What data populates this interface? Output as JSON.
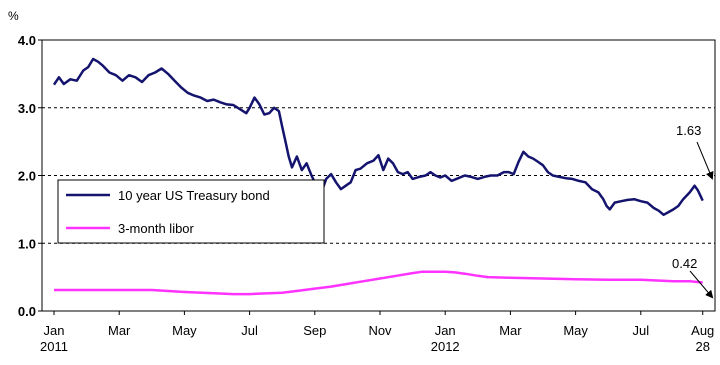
{
  "chart_data": {
    "type": "line",
    "unit_label": "%",
    "ylim": [
      0.0,
      4.0
    ],
    "y_ticks": [
      "0.0",
      "1.0",
      "2.0",
      "3.0",
      "4.0"
    ],
    "y_tick_values": [
      0.0,
      1.0,
      2.0,
      3.0,
      4.0
    ],
    "grid": "horizontal-dashed",
    "x_ticks": [
      {
        "label": "Jan",
        "sub": "2011",
        "month": 0
      },
      {
        "label": "Mar",
        "sub": "",
        "month": 2
      },
      {
        "label": "May",
        "sub": "",
        "month": 4
      },
      {
        "label": "Jul",
        "sub": "",
        "month": 6
      },
      {
        "label": "Sep",
        "sub": "",
        "month": 8
      },
      {
        "label": "Nov",
        "sub": "",
        "month": 10
      },
      {
        "label": "Jan",
        "sub": "2012",
        "month": 12
      },
      {
        "label": "Mar",
        "sub": "",
        "month": 14
      },
      {
        "label": "May",
        "sub": "",
        "month": 16
      },
      {
        "label": "Jul",
        "sub": "",
        "month": 18
      },
      {
        "label": "Aug",
        "sub": "28",
        "month": 19.9
      }
    ],
    "legend_position": "left-middle",
    "series": [
      {
        "name": "10 year US Treasury bond",
        "color": "#14146e",
        "points": [
          [
            0.0,
            3.34
          ],
          [
            0.15,
            3.45
          ],
          [
            0.3,
            3.35
          ],
          [
            0.5,
            3.42
          ],
          [
            0.7,
            3.4
          ],
          [
            0.9,
            3.55
          ],
          [
            1.05,
            3.6
          ],
          [
            1.2,
            3.72
          ],
          [
            1.35,
            3.68
          ],
          [
            1.5,
            3.62
          ],
          [
            1.7,
            3.52
          ],
          [
            1.9,
            3.48
          ],
          [
            2.1,
            3.4
          ],
          [
            2.3,
            3.48
          ],
          [
            2.5,
            3.45
          ],
          [
            2.7,
            3.38
          ],
          [
            2.9,
            3.48
          ],
          [
            3.1,
            3.52
          ],
          [
            3.3,
            3.58
          ],
          [
            3.5,
            3.5
          ],
          [
            3.7,
            3.4
          ],
          [
            3.9,
            3.3
          ],
          [
            4.1,
            3.22
          ],
          [
            4.3,
            3.18
          ],
          [
            4.5,
            3.15
          ],
          [
            4.7,
            3.1
          ],
          [
            4.9,
            3.12
          ],
          [
            5.1,
            3.08
          ],
          [
            5.3,
            3.05
          ],
          [
            5.5,
            3.04
          ],
          [
            5.7,
            2.98
          ],
          [
            5.9,
            2.92
          ],
          [
            6.0,
            3.0
          ],
          [
            6.15,
            3.15
          ],
          [
            6.3,
            3.05
          ],
          [
            6.45,
            2.9
          ],
          [
            6.6,
            2.92
          ],
          [
            6.75,
            3.0
          ],
          [
            6.9,
            2.95
          ],
          [
            7.0,
            2.72
          ],
          [
            7.1,
            2.5
          ],
          [
            7.2,
            2.28
          ],
          [
            7.3,
            2.12
          ],
          [
            7.45,
            2.28
          ],
          [
            7.6,
            2.08
          ],
          [
            7.75,
            2.18
          ],
          [
            7.9,
            2.0
          ],
          [
            8.05,
            1.85
          ],
          [
            8.2,
            1.75
          ],
          [
            8.35,
            1.95
          ],
          [
            8.5,
            2.02
          ],
          [
            8.65,
            1.9
          ],
          [
            8.8,
            1.8
          ],
          [
            8.95,
            1.85
          ],
          [
            9.1,
            1.9
          ],
          [
            9.25,
            2.08
          ],
          [
            9.4,
            2.1
          ],
          [
            9.6,
            2.18
          ],
          [
            9.8,
            2.22
          ],
          [
            9.95,
            2.3
          ],
          [
            10.1,
            2.08
          ],
          [
            10.25,
            2.25
          ],
          [
            10.4,
            2.18
          ],
          [
            10.55,
            2.05
          ],
          [
            10.7,
            2.02
          ],
          [
            10.85,
            2.05
          ],
          [
            11.0,
            1.95
          ],
          [
            11.2,
            1.98
          ],
          [
            11.4,
            2.0
          ],
          [
            11.55,
            2.05
          ],
          [
            11.7,
            2.0
          ],
          [
            11.85,
            1.97
          ],
          [
            12.0,
            2.0
          ],
          [
            12.2,
            1.92
          ],
          [
            12.4,
            1.96
          ],
          [
            12.6,
            2.0
          ],
          [
            12.8,
            1.98
          ],
          [
            13.0,
            1.95
          ],
          [
            13.2,
            1.98
          ],
          [
            13.4,
            2.0
          ],
          [
            13.6,
            2.0
          ],
          [
            13.8,
            2.05
          ],
          [
            13.95,
            2.05
          ],
          [
            14.1,
            2.02
          ],
          [
            14.25,
            2.2
          ],
          [
            14.4,
            2.35
          ],
          [
            14.55,
            2.28
          ],
          [
            14.7,
            2.25
          ],
          [
            14.85,
            2.2
          ],
          [
            15.0,
            2.15
          ],
          [
            15.15,
            2.05
          ],
          [
            15.3,
            2.0
          ],
          [
            15.5,
            1.98
          ],
          [
            15.7,
            1.96
          ],
          [
            15.9,
            1.95
          ],
          [
            16.1,
            1.92
          ],
          [
            16.3,
            1.9
          ],
          [
            16.5,
            1.8
          ],
          [
            16.7,
            1.75
          ],
          [
            16.85,
            1.65
          ],
          [
            16.95,
            1.55
          ],
          [
            17.05,
            1.5
          ],
          [
            17.2,
            1.6
          ],
          [
            17.4,
            1.62
          ],
          [
            17.6,
            1.64
          ],
          [
            17.8,
            1.65
          ],
          [
            18.0,
            1.62
          ],
          [
            18.2,
            1.6
          ],
          [
            18.4,
            1.52
          ],
          [
            18.55,
            1.48
          ],
          [
            18.7,
            1.42
          ],
          [
            18.85,
            1.46
          ],
          [
            19.0,
            1.5
          ],
          [
            19.15,
            1.55
          ],
          [
            19.3,
            1.65
          ],
          [
            19.5,
            1.75
          ],
          [
            19.65,
            1.85
          ],
          [
            19.75,
            1.78
          ],
          [
            19.85,
            1.68
          ],
          [
            19.9,
            1.63
          ]
        ]
      },
      {
        "name": "3-month libor",
        "color": "#ff33ff",
        "points": [
          [
            0.0,
            0.31
          ],
          [
            1.0,
            0.31
          ],
          [
            2.0,
            0.31
          ],
          [
            3.0,
            0.31
          ],
          [
            4.0,
            0.28
          ],
          [
            5.0,
            0.26
          ],
          [
            5.5,
            0.25
          ],
          [
            6.0,
            0.25
          ],
          [
            6.5,
            0.26
          ],
          [
            7.0,
            0.27
          ],
          [
            7.5,
            0.3
          ],
          [
            8.0,
            0.33
          ],
          [
            8.5,
            0.36
          ],
          [
            9.0,
            0.4
          ],
          [
            9.5,
            0.44
          ],
          [
            10.0,
            0.48
          ],
          [
            10.5,
            0.52
          ],
          [
            11.0,
            0.56
          ],
          [
            11.3,
            0.58
          ],
          [
            11.6,
            0.58
          ],
          [
            12.0,
            0.58
          ],
          [
            12.3,
            0.57
          ],
          [
            12.6,
            0.55
          ],
          [
            13.0,
            0.52
          ],
          [
            13.3,
            0.5
          ],
          [
            14.0,
            0.49
          ],
          [
            15.0,
            0.48
          ],
          [
            16.0,
            0.47
          ],
          [
            17.0,
            0.46
          ],
          [
            18.0,
            0.46
          ],
          [
            18.5,
            0.45
          ],
          [
            19.0,
            0.44
          ],
          [
            19.5,
            0.44
          ],
          [
            19.9,
            0.42
          ]
        ]
      }
    ],
    "annotations": [
      {
        "text": "1.63",
        "month": 19.9,
        "value": 1.63
      },
      {
        "text": "0.42",
        "month": 19.9,
        "value": 0.42
      }
    ]
  }
}
